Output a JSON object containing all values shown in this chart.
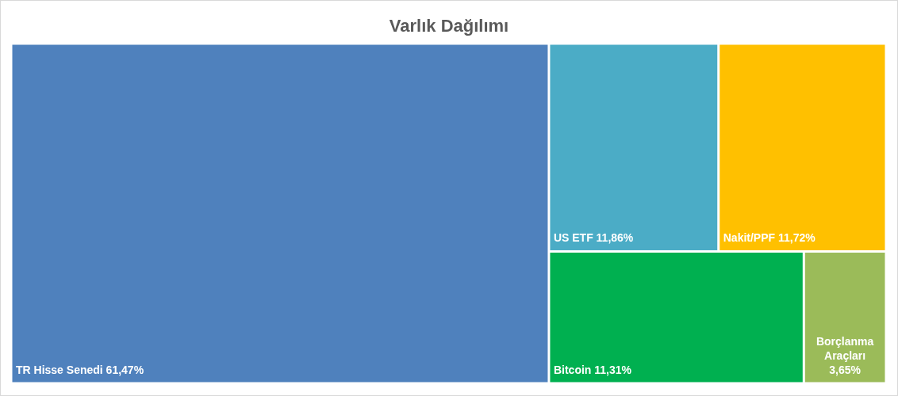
{
  "chart_data": {
    "type": "other",
    "title": "Varlık Dağılımı",
    "categories": [
      "TR Hisse Senedi",
      "US ETF",
      "Nakit/PPF",
      "Bitcoin",
      "Borçlanma Araçları"
    ],
    "values": [
      61.47,
      11.86,
      11.72,
      11.31,
      3.65
    ],
    "value_labels": [
      "61,47%",
      "11,86%",
      "11,72%",
      "11,31%",
      "3,65%"
    ],
    "colors": [
      "#4f81bd",
      "#4bacc6",
      "#ffc000",
      "#00b050",
      "#9bbb59"
    ]
  }
}
